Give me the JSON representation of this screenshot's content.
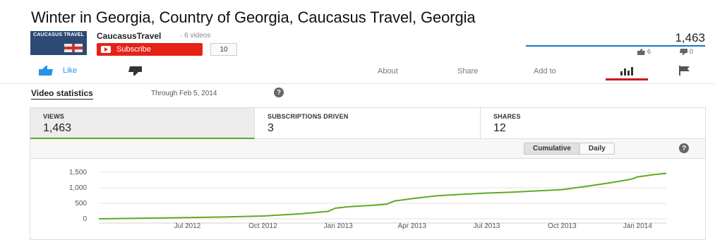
{
  "video": {
    "title": "Winter in Georgia, Country of Georgia, Caucasus Travel, Georgia"
  },
  "channel": {
    "logo_text": "CAUCASUS TRAVEL",
    "name": "CaucasusTravel",
    "video_count": "· 6 videos",
    "subscribe_label": "Subscribe",
    "subscriber_count": "10"
  },
  "summary": {
    "views": "1,463",
    "likes": "6",
    "dislikes": "0"
  },
  "actions": {
    "like_label": "Like",
    "tabs": [
      "About",
      "Share",
      "Add to"
    ]
  },
  "statistics": {
    "heading": "Video statistics",
    "through": "Through Feb 5, 2014",
    "help_glyph": "?",
    "metrics": [
      {
        "label": "VIEWS",
        "value": "1,463"
      },
      {
        "label": "SUBSCRIPTIONS DRIVEN",
        "value": "3"
      },
      {
        "label": "SHARES",
        "value": "12"
      }
    ],
    "toggles": [
      "Cumulative",
      "Daily"
    ],
    "selected_toggle": "Cumulative"
  },
  "colors": {
    "accent_red": "#e62117",
    "line_green": "#5dab23",
    "link_blue": "#2793e6"
  },
  "chart_data": {
    "type": "line",
    "yticks": [
      0,
      500,
      1000,
      1500
    ],
    "ytick_labels": [
      "0",
      "500",
      "1,000",
      "1,500"
    ],
    "ylim": [
      0,
      1500
    ],
    "xticks": [
      "2012-07-01",
      "2012-10-01",
      "2013-01-01",
      "2013-04-01",
      "2013-07-01",
      "2013-10-01",
      "2014-01-01"
    ],
    "xtick_labels": [
      "Jul 2012",
      "Oct 2012",
      "Jan 2013",
      "Apr 2013",
      "Jul 2013",
      "Oct 2013",
      "Jan 2014"
    ],
    "xlim": [
      "2012-03-15",
      "2014-02-05"
    ],
    "grid": true,
    "series": [
      {
        "points": [
          [
            "2012-03-15",
            0
          ],
          [
            "2012-05-01",
            15
          ],
          [
            "2012-07-01",
            40
          ],
          [
            "2012-08-15",
            60
          ],
          [
            "2012-10-01",
            90
          ],
          [
            "2012-11-15",
            160
          ],
          [
            "2012-12-20",
            240
          ],
          [
            "2012-12-28",
            340
          ],
          [
            "2013-01-15",
            390
          ],
          [
            "2013-02-15",
            440
          ],
          [
            "2013-03-01",
            470
          ],
          [
            "2013-03-10",
            570
          ],
          [
            "2013-04-01",
            650
          ],
          [
            "2013-05-01",
            740
          ],
          [
            "2013-06-01",
            790
          ],
          [
            "2013-07-01",
            830
          ],
          [
            "2013-08-01",
            860
          ],
          [
            "2013-09-01",
            900
          ],
          [
            "2013-10-01",
            940
          ],
          [
            "2013-11-01",
            1050
          ],
          [
            "2013-12-01",
            1170
          ],
          [
            "2013-12-25",
            1280
          ],
          [
            "2014-01-01",
            1350
          ],
          [
            "2014-01-20",
            1420
          ],
          [
            "2014-02-05",
            1463
          ]
        ]
      }
    ]
  }
}
